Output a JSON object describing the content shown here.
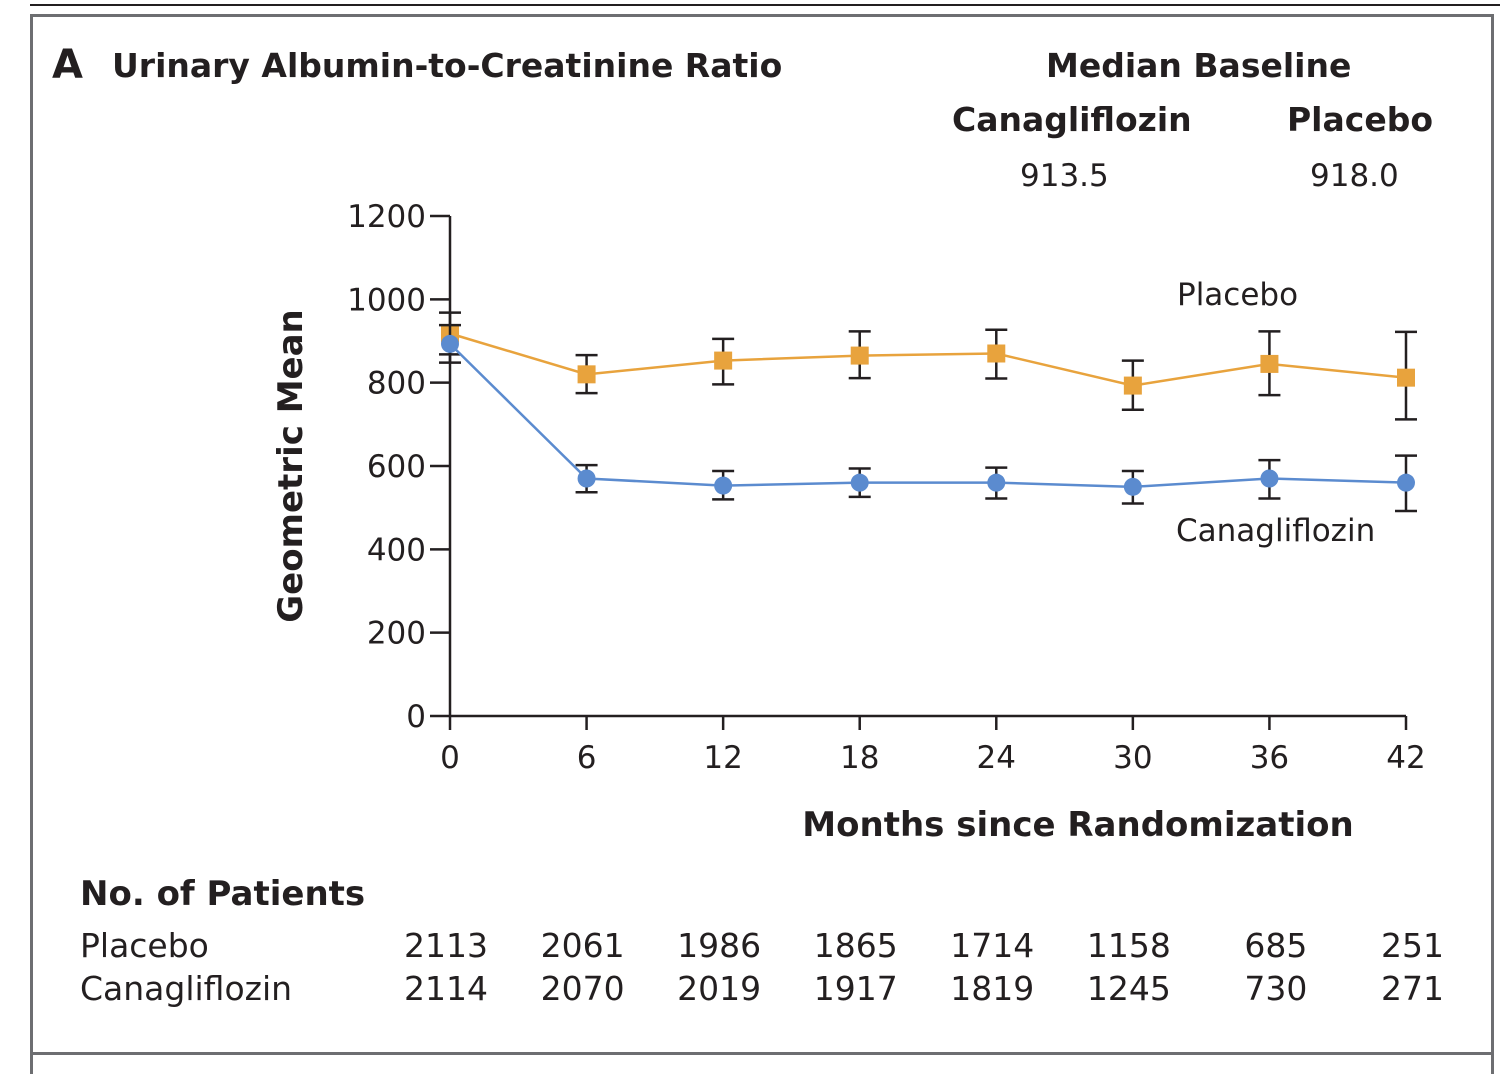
{
  "panel": {
    "letter": "A",
    "title": "Urinary Albumin-to-Creatinine Ratio"
  },
  "median_baseline": {
    "heading": "Median Baseline",
    "canagliflozin_label": "Canagliflozin",
    "canagliflozin_value": "913.5",
    "placebo_label": "Placebo",
    "placebo_value": "918.0"
  },
  "patients": {
    "heading": "No. of Patients",
    "placebo_label": "Placebo",
    "canagliflozin_label": "Canagliflozin",
    "placebo_counts": [
      "2113",
      "2061",
      "1986",
      "1865",
      "1714",
      "1158",
      "685",
      "251"
    ],
    "canagliflozin_counts": [
      "2114",
      "2070",
      "2019",
      "1917",
      "1819",
      "1245",
      "730",
      "271"
    ]
  },
  "chart_data": {
    "type": "line",
    "title": "Urinary Albumin-to-Creatinine Ratio",
    "xlabel": "Months since Randomization",
    "ylabel": "Geometric Mean",
    "x": [
      0,
      6,
      12,
      18,
      24,
      30,
      36,
      42
    ],
    "xlim": [
      0,
      42
    ],
    "ylim": [
      0,
      1200
    ],
    "xticks": [
      "0",
      "6",
      "12",
      "18",
      "24",
      "30",
      "36",
      "42"
    ],
    "yticks": [
      "0",
      "200",
      "400",
      "600",
      "800",
      "1000",
      "1200"
    ],
    "grid": false,
    "series": [
      {
        "name": "Placebo",
        "color": "#e8a33d",
        "marker": "square",
        "values": [
          918,
          820,
          853,
          865,
          870,
          793,
          845,
          812
        ],
        "error_low": [
          868,
          775,
          796,
          811,
          810,
          735,
          770,
          712
        ],
        "error_high": [
          968,
          866,
          905,
          923,
          927,
          853,
          923,
          922
        ]
      },
      {
        "name": "Canagliflozin",
        "color": "#5b8bcf",
        "marker": "circle",
        "values": [
          893,
          570,
          553,
          560,
          560,
          550,
          570,
          560
        ],
        "error_low": [
          848,
          537,
          520,
          526,
          522,
          510,
          522,
          492
        ],
        "error_high": [
          938,
          602,
          588,
          594,
          596,
          588,
          614,
          625
        ]
      }
    ],
    "annotations": [
      "Placebo",
      "Canagliflozin"
    ]
  }
}
